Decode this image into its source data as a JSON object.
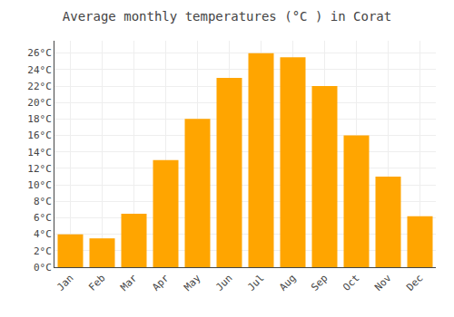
{
  "chart_data": {
    "type": "bar",
    "title": "Average monthly temperatures (°C ) in Corat",
    "categories": [
      "Jan",
      "Feb",
      "Mar",
      "Apr",
      "May",
      "Jun",
      "Jul",
      "Aug",
      "Sep",
      "Oct",
      "Nov",
      "Dec"
    ],
    "values": [
      4.0,
      3.5,
      6.5,
      13.0,
      18.0,
      23.0,
      26.0,
      25.5,
      22.0,
      16.0,
      11.0,
      6.2
    ],
    "color": "#FFA500",
    "ylim": [
      0,
      27.5
    ],
    "yticks": [
      {
        "value": 0,
        "label": "0°C"
      },
      {
        "value": 2,
        "label": "2°C"
      },
      {
        "value": 4,
        "label": "4°C"
      },
      {
        "value": 6,
        "label": "6°C"
      },
      {
        "value": 8,
        "label": "8°C"
      },
      {
        "value": 10,
        "label": "10°C"
      },
      {
        "value": 12,
        "label": "12°C"
      },
      {
        "value": 14,
        "label": "14°C"
      },
      {
        "value": 16,
        "label": "16°C"
      },
      {
        "value": 18,
        "label": "18°C"
      },
      {
        "value": 20,
        "label": "20°C"
      },
      {
        "value": 22,
        "label": "22°C"
      },
      {
        "value": 24,
        "label": "24°C"
      },
      {
        "value": 26,
        "label": "26°C"
      }
    ],
    "grid": true
  }
}
